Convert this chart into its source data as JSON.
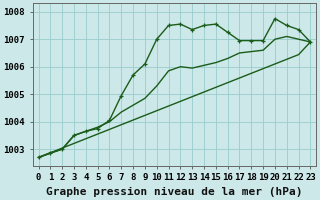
{
  "title": "Graphe pression niveau de la mer (hPa)",
  "bg_color": "#cce8e8",
  "grid_color": "#99cccc",
  "line_color": "#1a5c1a",
  "x_labels": [
    "0",
    "1",
    "2",
    "3",
    "4",
    "5",
    "6",
    "7",
    "8",
    "9",
    "10",
    "11",
    "12",
    "13",
    "14",
    "15",
    "16",
    "17",
    "18",
    "19",
    "20",
    "21",
    "22",
    "23"
  ],
  "ylim": [
    1002.4,
    1008.3
  ],
  "yticks": [
    1003,
    1004,
    1005,
    1006,
    1007,
    1008
  ],
  "series1": [
    1002.7,
    1002.85,
    1003.0,
    1003.5,
    1003.65,
    1003.75,
    1004.05,
    1004.95,
    1005.7,
    1006.1,
    1007.0,
    1007.5,
    1007.55,
    1007.35,
    1007.5,
    1007.55,
    1007.25,
    1006.95,
    1006.95,
    1006.95,
    1007.75,
    1007.5,
    1007.35,
    1006.9
  ],
  "series2": [
    1002.7,
    1002.87,
    1003.04,
    1003.21,
    1003.38,
    1003.55,
    1003.72,
    1003.89,
    1004.06,
    1004.23,
    1004.4,
    1004.57,
    1004.74,
    1004.91,
    1005.08,
    1005.25,
    1005.42,
    1005.59,
    1005.76,
    1005.93,
    1006.1,
    1006.27,
    1006.44,
    1006.9
  ],
  "series3": [
    1002.7,
    1002.87,
    1003.0,
    1003.5,
    1003.65,
    1003.8,
    1004.0,
    1004.35,
    1004.6,
    1004.85,
    1005.3,
    1005.85,
    1006.0,
    1005.95,
    1006.05,
    1006.15,
    1006.3,
    1006.5,
    1006.55,
    1006.6,
    1007.0,
    1007.1,
    1007.0,
    1006.9
  ],
  "marker": "+",
  "marker_size": 3.5,
  "line_width": 1.0,
  "title_fontsize": 8,
  "tick_fontsize": 6.5
}
